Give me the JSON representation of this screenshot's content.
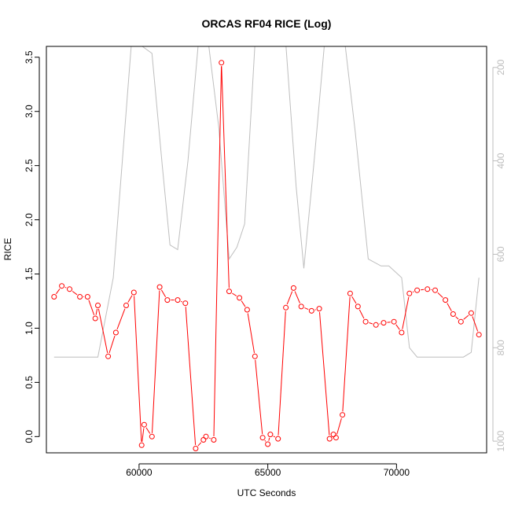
{
  "chart_data": {
    "type": "line",
    "title": "ORCAS RF04 RICE (Log)",
    "xlabel": "UTC Seconds",
    "ylabel": "RICE",
    "xlim": [
      56400,
      73500
    ],
    "ylim": [
      -0.15,
      3.6
    ],
    "y2lim": [
      1025,
      155
    ],
    "y2_reversed": true,
    "x_ticks": [
      60000,
      65000,
      70000
    ],
    "y_ticks": [
      0.0,
      0.5,
      1.0,
      1.5,
      2.0,
      2.5,
      3.0,
      3.5
    ],
    "y_tick_labels": [
      "0.0",
      "0.5",
      "1.0",
      "1.5",
      "2.0",
      "2.5",
      "3.0",
      "3.5"
    ],
    "y2_ticks": [
      200,
      400,
      600,
      800,
      1000
    ],
    "colors": {
      "rice": "#ff0000",
      "pressure": "#bebebe",
      "axis": "#000000",
      "right_axis": "#bdbdbd"
    },
    "series": [
      {
        "type": "line",
        "axis": "right",
        "x": [
          56700,
          58400,
          59000,
          59700,
          60000,
          60500,
          60900,
          61200,
          61500,
          61900,
          62300,
          62700,
          63100,
          63500,
          63800,
          64100,
          64500,
          64900,
          65300,
          65700,
          66100,
          66400,
          66800,
          67200,
          67600,
          68000,
          68400,
          68900,
          69400,
          69700,
          70200,
          70500,
          70800,
          71200,
          71600,
          72000,
          72400,
          72600,
          72900,
          73200
        ],
        "values": [
          820,
          820,
          650,
          150,
          150,
          170,
          410,
          580,
          590,
          400,
          150,
          150,
          330,
          610,
          585,
          535,
          150,
          150,
          150,
          150,
          455,
          630,
          400,
          150,
          150,
          150,
          340,
          610,
          625,
          625,
          650,
          800,
          820,
          820,
          820,
          820,
          820,
          820,
          810,
          650
        ]
      },
      {
        "type": "line+points",
        "axis": "left",
        "x": [
          56700,
          57000,
          57300,
          57700,
          58000,
          58300,
          58400,
          58800,
          59100,
          59500,
          59800,
          60100,
          60200,
          60500,
          60800,
          61100,
          61500,
          61800,
          62200,
          62500,
          62600,
          62900,
          63200,
          63500,
          63900,
          64200,
          64500,
          64800,
          65000,
          65100,
          65400,
          65700,
          66000,
          66300,
          66700,
          67000,
          67400,
          67550,
          67650,
          67900,
          68200,
          68500,
          68800,
          69200,
          69500,
          69900,
          70200,
          70500,
          70800,
          71200,
          71500,
          71900,
          72200,
          72500,
          72900,
          73200
        ],
        "values": [
          1.29,
          1.39,
          1.36,
          1.29,
          1.29,
          1.09,
          1.21,
          0.74,
          0.96,
          1.21,
          1.33,
          -0.08,
          0.11,
          0.0,
          1.38,
          1.26,
          1.26,
          1.23,
          -0.11,
          -0.03,
          0.0,
          -0.03,
          3.45,
          1.34,
          1.28,
          1.17,
          0.74,
          -0.01,
          -0.07,
          0.02,
          -0.02,
          1.19,
          1.37,
          1.2,
          1.16,
          1.18,
          -0.02,
          0.02,
          -0.01,
          0.2,
          1.32,
          1.2,
          1.06,
          1.03,
          1.05,
          1.06,
          0.96,
          1.32,
          1.35,
          1.36,
          1.35,
          1.26,
          1.13,
          1.06,
          1.14,
          0.94
        ]
      }
    ]
  }
}
